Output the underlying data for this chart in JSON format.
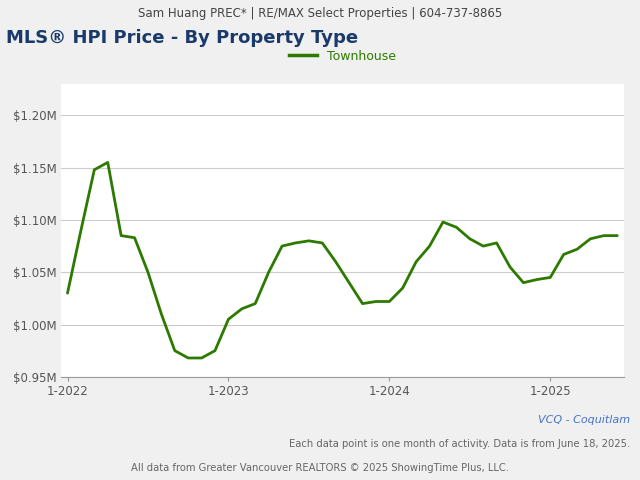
{
  "header_text": "Sam Huang PREC* | RE/MAX Select Properties | 604-737-8865",
  "title": "MLS® HPI Price - By Property Type",
  "legend_label": "Townhouse",
  "line_color": "#2d7a00",
  "title_color": "#1a3a6b",
  "footer1": "VCQ - Coquitlam",
  "footer2": "Each data point is one month of activity. Data is from June 18, 2025.",
  "footer3": "All data from Greater Vancouver REALTORS © 2025 ShowingTime Plus, LLC.",
  "x_labels": [
    "1-2022",
    "1-2023",
    "1-2024",
    "1-2025"
  ],
  "x_tick_indices": [
    0,
    12,
    24,
    36
  ],
  "ylim": [
    950000,
    1230000
  ],
  "yticks": [
    950000,
    1000000,
    1050000,
    1100000,
    1150000,
    1200000
  ],
  "ytick_labels": [
    "$0.95M",
    "$1.00M",
    "$1.05M",
    "$1.10M",
    "$1.15M",
    "$1.20M"
  ],
  "header_bg": "#e8e8e8",
  "plot_bg": "#ffffff",
  "fig_bg": "#f0f0f0",
  "grid_color": "#cccccc",
  "footer1_color": "#4472C4",
  "footer_color": "#666666",
  "values": [
    1030000,
    1090000,
    1148000,
    1155000,
    1085000,
    1083000,
    1050000,
    1010000,
    975000,
    968000,
    968000,
    975000,
    1005000,
    1015000,
    1020000,
    1050000,
    1075000,
    1078000,
    1080000,
    1078000,
    1060000,
    1040000,
    1020000,
    1022000,
    1022000,
    1035000,
    1060000,
    1075000,
    1098000,
    1093000,
    1082000,
    1075000,
    1078000,
    1055000,
    1040000,
    1043000,
    1045000,
    1067000,
    1072000,
    1082000,
    1085000,
    1085000
  ]
}
